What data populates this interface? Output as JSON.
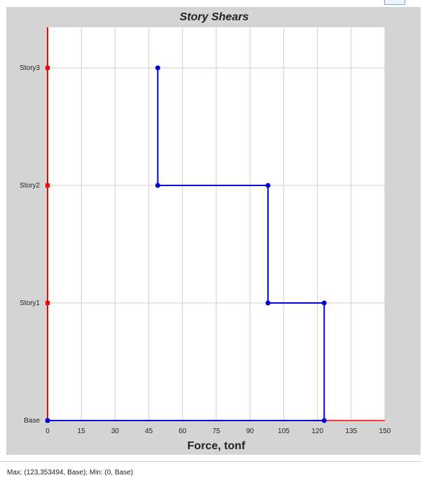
{
  "chart_data": {
    "type": "line",
    "title": "Story Shears",
    "xlabel": "Force, tonf",
    "ylabel": "",
    "xlim": [
      0,
      150
    ],
    "x_ticks": [
      0,
      15,
      30,
      45,
      60,
      75,
      90,
      105,
      120,
      135,
      150
    ],
    "y_categories": [
      "Base",
      "Story1",
      "Story2",
      "Story3"
    ],
    "grid": true,
    "series": [
      {
        "color": "#0000dd",
        "step": true,
        "points": [
          {
            "story": "Story3",
            "x": 49
          },
          {
            "story": "Story2",
            "x": 49
          },
          {
            "story": "Story2",
            "x": 98
          },
          {
            "story": "Story1",
            "x": 98
          },
          {
            "story": "Story1",
            "x": 123
          },
          {
            "story": "Base",
            "x": 123
          },
          {
            "story": "Base",
            "x": 0
          }
        ]
      }
    ],
    "axis_color": "#ff0000"
  },
  "status": {
    "text": "Max: (123,353494, Base);   Min: (0, Base)"
  }
}
